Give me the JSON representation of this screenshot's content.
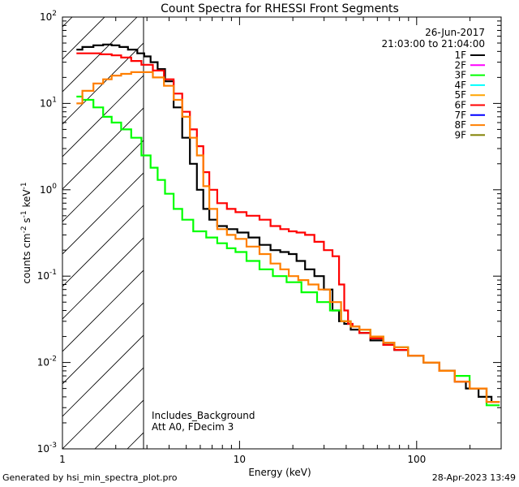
{
  "chart_data": {
    "type": "line",
    "title": "Count Spectra for RHESSI Front Segments",
    "xlabel": "Energy (keV)",
    "ylabel_parts": [
      "counts cm",
      "-2",
      " s",
      "-1",
      " keV",
      "-1"
    ],
    "xscale": "log",
    "yscale": "log",
    "xlim": [
      1,
      300
    ],
    "ylim": [
      0.001,
      100
    ],
    "x_ticks": [
      {
        "v": 10,
        "label": "10"
      },
      {
        "v": 100,
        "label": "100"
      }
    ],
    "x_tick_one_label": "1",
    "y_ticks": [
      {
        "v": 0.001,
        "base": "10",
        "exp": "-3"
      },
      {
        "v": 0.01,
        "base": "10",
        "exp": "-2"
      },
      {
        "v": 0.1,
        "base": "10",
        "exp": "-1"
      },
      {
        "v": 1,
        "base": "10",
        "exp": "0"
      },
      {
        "v": 10,
        "base": "10",
        "exp": "1"
      },
      {
        "v": 100,
        "base": "10",
        "exp": "2"
      }
    ],
    "date": "26-Jun-2017",
    "time_range": "21:03:00 to 21:04:00",
    "shaded_region_x": [
      1,
      3
    ],
    "annotations": [
      "Includes_Background",
      "Att A0, FDecim 3"
    ],
    "legend": [
      {
        "label": "1F",
        "color": "#000000"
      },
      {
        "label": "2F",
        "color": "#ff00ff"
      },
      {
        "label": "3F",
        "color": "#00ff00"
      },
      {
        "label": "4F",
        "color": "#00ffff"
      },
      {
        "label": "5F",
        "color": "#ffa500"
      },
      {
        "label": "6F",
        "color": "#ff0000"
      },
      {
        "label": "7F",
        "color": "#0000ff"
      },
      {
        "label": "8F",
        "color": "#ff7f00"
      },
      {
        "label": "9F",
        "color": "#808000"
      }
    ],
    "series": [
      {
        "name": "1F",
        "color": "#000000",
        "points": [
          [
            1.2,
            42
          ],
          [
            1.4,
            45
          ],
          [
            1.6,
            47
          ],
          [
            1.8,
            48
          ],
          [
            2.0,
            47
          ],
          [
            2.2,
            45
          ],
          [
            2.5,
            42
          ],
          [
            2.8,
            38
          ],
          [
            3.0,
            35
          ],
          [
            3.3,
            30
          ],
          [
            3.6,
            25
          ],
          [
            4.0,
            18
          ],
          [
            4.5,
            9
          ],
          [
            5.0,
            4
          ],
          [
            5.5,
            2
          ],
          [
            6.0,
            1.0
          ],
          [
            6.5,
            0.6
          ],
          [
            7.0,
            0.45
          ],
          [
            8.0,
            0.38
          ],
          [
            9.0,
            0.35
          ],
          [
            10.5,
            0.32
          ],
          [
            12,
            0.28
          ],
          [
            14,
            0.23
          ],
          [
            16,
            0.2
          ],
          [
            18,
            0.19
          ],
          [
            20,
            0.18
          ],
          [
            22,
            0.15
          ],
          [
            25,
            0.12
          ],
          [
            28,
            0.1
          ],
          [
            32,
            0.07
          ],
          [
            35,
            0.04
          ],
          [
            38,
            0.03
          ],
          [
            40,
            0.028
          ],
          [
            45,
            0.024
          ],
          [
            50,
            0.022
          ],
          [
            60,
            0.018
          ],
          [
            70,
            0.016
          ],
          [
            80,
            0.014
          ],
          [
            100,
            0.012
          ],
          [
            120,
            0.01
          ],
          [
            150,
            0.008
          ],
          [
            180,
            0.006
          ],
          [
            200,
            0.005
          ],
          [
            250,
            0.004
          ],
          [
            280,
            0.0035
          ]
        ]
      },
      {
        "name": "3F",
        "color": "#00ff00",
        "points": [
          [
            1.2,
            12
          ],
          [
            1.4,
            11
          ],
          [
            1.6,
            9
          ],
          [
            1.8,
            7
          ],
          [
            2.0,
            6
          ],
          [
            2.3,
            5
          ],
          [
            2.6,
            4
          ],
          [
            3.0,
            2.5
          ],
          [
            3.3,
            1.8
          ],
          [
            3.6,
            1.3
          ],
          [
            4.0,
            0.9
          ],
          [
            4.5,
            0.6
          ],
          [
            5.0,
            0.45
          ],
          [
            6.0,
            0.33
          ],
          [
            7.0,
            0.28
          ],
          [
            8.0,
            0.24
          ],
          [
            9.0,
            0.21
          ],
          [
            10,
            0.19
          ],
          [
            12,
            0.15
          ],
          [
            14,
            0.12
          ],
          [
            17,
            0.1
          ],
          [
            20,
            0.085
          ],
          [
            25,
            0.065
          ],
          [
            30,
            0.05
          ],
          [
            35,
            0.04
          ],
          [
            40,
            0.03
          ],
          [
            45,
            0.026
          ],
          [
            50,
            0.024
          ],
          [
            60,
            0.02
          ],
          [
            70,
            0.017
          ],
          [
            80,
            0.015
          ],
          [
            100,
            0.012
          ],
          [
            120,
            0.01
          ],
          [
            150,
            0.008
          ],
          [
            180,
            0.007
          ],
          [
            220,
            0.005
          ],
          [
            280,
            0.0032
          ]
        ]
      },
      {
        "name": "6F",
        "color": "#ff0000",
        "points": [
          [
            1.2,
            38
          ],
          [
            1.5,
            38
          ],
          [
            1.8,
            37
          ],
          [
            2.0,
            36
          ],
          [
            2.3,
            34
          ],
          [
            2.6,
            31
          ],
          [
            3.0,
            28
          ],
          [
            3.5,
            24
          ],
          [
            4.0,
            19
          ],
          [
            4.5,
            13
          ],
          [
            5.0,
            8
          ],
          [
            5.5,
            5
          ],
          [
            6.0,
            3.2
          ],
          [
            6.5,
            1.6
          ],
          [
            7.0,
            1.0
          ],
          [
            8.0,
            0.7
          ],
          [
            9.0,
            0.6
          ],
          [
            10,
            0.55
          ],
          [
            12,
            0.5
          ],
          [
            14,
            0.45
          ],
          [
            16,
            0.38
          ],
          [
            18,
            0.35
          ],
          [
            20,
            0.33
          ],
          [
            22,
            0.32
          ],
          [
            25,
            0.3
          ],
          [
            28,
            0.25
          ],
          [
            32,
            0.2
          ],
          [
            35,
            0.17
          ],
          [
            38,
            0.08
          ],
          [
            40,
            0.04
          ],
          [
            42,
            0.028
          ],
          [
            45,
            0.026
          ],
          [
            50,
            0.022
          ],
          [
            60,
            0.019
          ],
          [
            70,
            0.016
          ],
          [
            80,
            0.014
          ],
          [
            100,
            0.012
          ],
          [
            120,
            0.01
          ],
          [
            150,
            0.008
          ],
          [
            180,
            0.006
          ],
          [
            220,
            0.005
          ],
          [
            280,
            0.0035
          ]
        ]
      },
      {
        "name": "8F",
        "color": "#ff7f00",
        "points": [
          [
            1.2,
            10
          ],
          [
            1.4,
            14
          ],
          [
            1.6,
            17
          ],
          [
            1.8,
            19
          ],
          [
            2.0,
            21
          ],
          [
            2.3,
            22
          ],
          [
            2.6,
            23
          ],
          [
            3.0,
            23
          ],
          [
            3.5,
            20
          ],
          [
            4.0,
            16
          ],
          [
            4.5,
            11
          ],
          [
            5.0,
            7
          ],
          [
            5.5,
            4
          ],
          [
            6.0,
            2.5
          ],
          [
            6.5,
            1.1
          ],
          [
            7.0,
            0.6
          ],
          [
            8.0,
            0.35
          ],
          [
            9.0,
            0.3
          ],
          [
            10,
            0.27
          ],
          [
            12,
            0.22
          ],
          [
            14,
            0.18
          ],
          [
            16,
            0.14
          ],
          [
            18,
            0.12
          ],
          [
            20,
            0.1
          ],
          [
            23,
            0.09
          ],
          [
            26,
            0.08
          ],
          [
            30,
            0.07
          ],
          [
            35,
            0.05
          ],
          [
            40,
            0.03
          ],
          [
            45,
            0.026
          ],
          [
            50,
            0.024
          ],
          [
            60,
            0.02
          ],
          [
            70,
            0.017
          ],
          [
            80,
            0.015
          ],
          [
            100,
            0.012
          ],
          [
            120,
            0.01
          ],
          [
            150,
            0.008
          ],
          [
            180,
            0.006
          ],
          [
            220,
            0.005
          ],
          [
            280,
            0.0035
          ]
        ]
      }
    ]
  },
  "footer": {
    "left": "Generated by hsi_min_spectra_plot.pro",
    "right": "28-Apr-2023 13:49"
  }
}
